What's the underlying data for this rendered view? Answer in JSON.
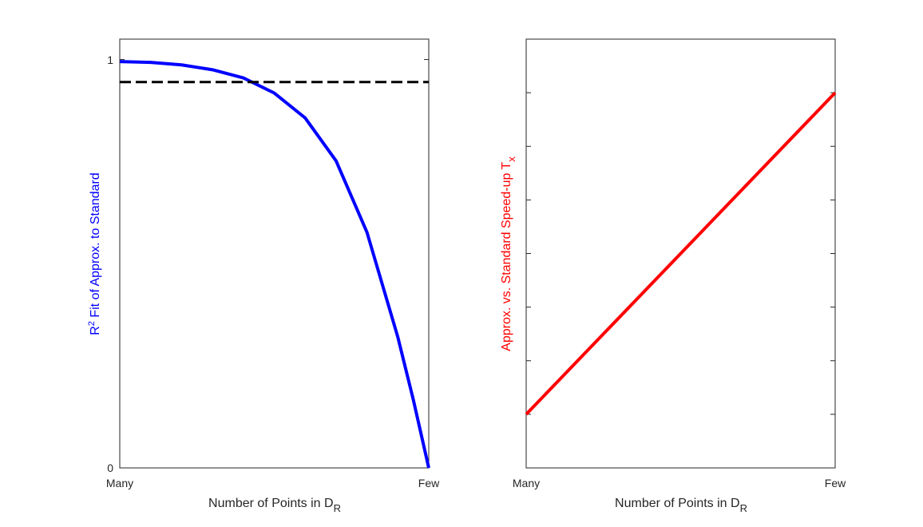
{
  "chart_data": [
    {
      "type": "line",
      "title": "",
      "xlabel_main": "Number of Points in D",
      "xlabel_sub": "R",
      "ylabel_pre": "R",
      "ylabel_sup": "2",
      "ylabel_post": " Fit of Approx. to Standard",
      "ylabel_color": "#0000FF",
      "x_tick_labels": [
        "Many",
        "Few"
      ],
      "y_tick_labels": [
        "0",
        "1"
      ],
      "y_tick_values": [
        0,
        1
      ],
      "xlim": [
        0,
        1
      ],
      "ylim": [
        0,
        1.05
      ],
      "grid": false,
      "series": [
        {
          "color": "#0000FF",
          "style": "solid",
          "x": [
            0,
            0.1,
            0.2,
            0.3,
            0.4,
            0.5,
            0.6,
            0.7,
            0.8,
            0.9,
            0.95,
            1.0
          ],
          "values": [
            0.995,
            0.993,
            0.987,
            0.975,
            0.955,
            0.918,
            0.857,
            0.752,
            0.577,
            0.32,
            0.167,
            0.0
          ]
        },
        {
          "color": "#000000",
          "style": "dashed",
          "x": [
            0,
            1
          ],
          "values": [
            0.945,
            0.945
          ]
        }
      ]
    },
    {
      "type": "line",
      "title": "",
      "xlabel_main": "Number of Points in D",
      "xlabel_sub": "R",
      "ylabel_main": "Approx. vs. Standard Speed-up T",
      "ylabel_sub": "x",
      "ylabel_color": "#FF0000",
      "x_tick_labels": [
        "Many",
        "Few"
      ],
      "xlim": [
        0,
        1
      ],
      "ylim": [
        0,
        8
      ],
      "y_tick_values": [
        1,
        2,
        3,
        4,
        5,
        6,
        7
      ],
      "grid": false,
      "series": [
        {
          "color": "#FF0000",
          "style": "solid",
          "x": [
            0,
            1
          ],
          "values": [
            1,
            7
          ]
        }
      ]
    }
  ]
}
